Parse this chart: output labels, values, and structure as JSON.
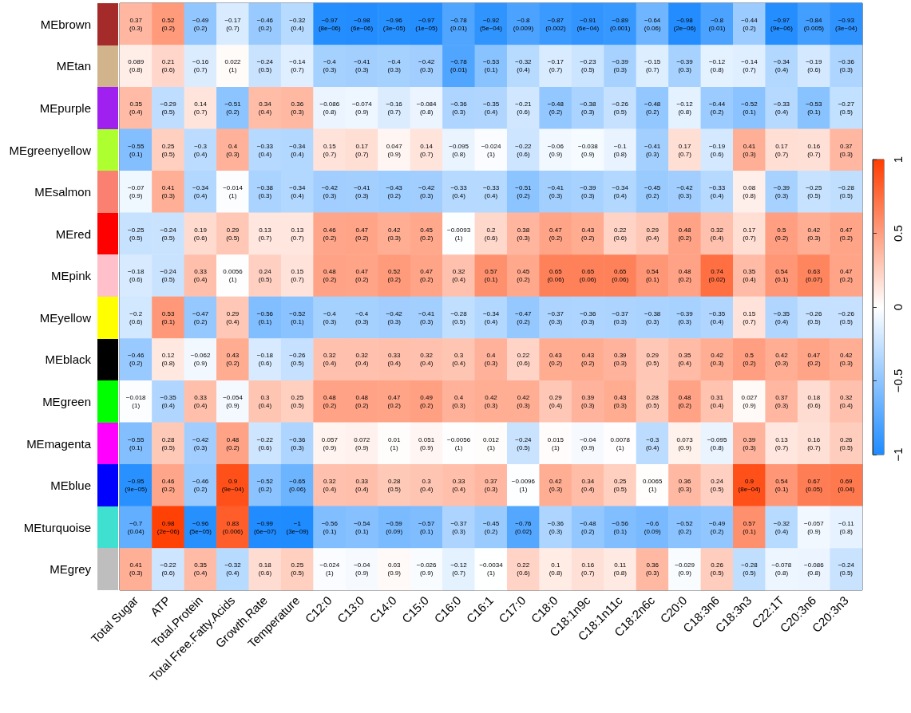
{
  "chart_data": {
    "type": "heatmap",
    "categories": [
      "Total Sugar",
      "ATP",
      "Total.Protein",
      "Total Free.Fatty.Acids",
      "Growth.Rate",
      "Temperature",
      "C12:0",
      "C13:0",
      "C14:0",
      "C15:0",
      "C16:0",
      "C16:1",
      "C17:0",
      "C18:0",
      "C18:1n9c",
      "C18:1n11c",
      "C18:2n6c",
      "C20:0",
      "C18:3n6",
      "C18:3n3",
      "C22:1T",
      "C20:3n6",
      "C20:3n3"
    ],
    "y_categories": [
      "MEbrown",
      "MEtan",
      "MEpurple",
      "MEgreenyellow",
      "MEsalmon",
      "MEred",
      "MEpink",
      "MEyellow",
      "MEblack",
      "MEgreen",
      "MEmagenta",
      "MEblue",
      "MEturquoise",
      "MEgrey"
    ],
    "cells": [
      [
        0.37,
        0.52,
        -0.49,
        -0.17,
        -0.46,
        -0.32,
        -0.97,
        -0.98,
        -0.96,
        -0.97,
        -0.78,
        -0.92,
        -0.8,
        -0.87,
        -0.91,
        -0.89,
        -0.64,
        -0.98,
        -0.8,
        -0.44,
        -0.97,
        -0.84,
        -0.93
      ],
      [
        0.089,
        0.21,
        -0.16,
        0.022,
        -0.24,
        -0.14,
        -0.4,
        -0.41,
        -0.4,
        -0.42,
        -0.78,
        -0.53,
        -0.32,
        -0.17,
        -0.23,
        -0.39,
        -0.15,
        -0.39,
        -0.12,
        -0.14,
        -0.34,
        -0.19,
        -0.36
      ],
      [
        0.35,
        -0.29,
        0.14,
        -0.51,
        0.34,
        0.36,
        -0.086,
        -0.074,
        -0.16,
        -0.084,
        -0.36,
        -0.35,
        -0.21,
        -0.48,
        -0.38,
        -0.26,
        -0.48,
        -0.12,
        -0.44,
        -0.52,
        -0.33,
        -0.53,
        -0.27
      ],
      [
        -0.55,
        0.25,
        -0.3,
        0.4,
        -0.33,
        -0.34,
        0.15,
        0.17,
        0.047,
        0.14,
        -0.095,
        -0.024,
        -0.22,
        -0.06,
        -0.038,
        -0.1,
        -0.41,
        0.17,
        -0.19,
        0.41,
        0.17,
        0.16,
        0.37
      ],
      [
        -0.07,
        0.41,
        -0.34,
        -0.014,
        -0.38,
        -0.34,
        -0.42,
        -0.41,
        -0.43,
        -0.42,
        -0.33,
        -0.33,
        -0.51,
        -0.41,
        -0.39,
        -0.34,
        -0.45,
        -0.42,
        -0.33,
        0.08,
        -0.39,
        -0.25,
        -0.28
      ],
      [
        -0.25,
        -0.24,
        0.19,
        0.29,
        0.13,
        0.13,
        0.46,
        0.47,
        0.42,
        0.45,
        -0.0093,
        0.2,
        0.38,
        0.47,
        0.43,
        0.22,
        0.29,
        0.48,
        0.32,
        0.17,
        0.5,
        0.42,
        0.47
      ],
      [
        -0.18,
        -0.24,
        0.33,
        0.0056,
        0.24,
        0.15,
        0.48,
        0.47,
        0.52,
        0.47,
        0.32,
        0.57,
        0.45,
        0.65,
        0.65,
        0.65,
        0.54,
        0.48,
        0.74,
        0.35,
        0.54,
        0.63,
        0.47
      ],
      [
        -0.2,
        0.53,
        -0.47,
        0.29,
        -0.56,
        -0.52,
        -0.4,
        -0.4,
        -0.42,
        -0.41,
        -0.28,
        -0.34,
        -0.47,
        -0.37,
        -0.36,
        -0.37,
        -0.38,
        -0.39,
        -0.35,
        0.15,
        -0.35,
        -0.26,
        -0.26
      ],
      [
        -0.46,
        0.12,
        -0.062,
        0.43,
        -0.18,
        -0.26,
        0.32,
        0.32,
        0.33,
        0.32,
        0.3,
        0.4,
        0.22,
        0.43,
        0.43,
        0.39,
        0.29,
        0.35,
        0.42,
        0.5,
        0.42,
        0.47,
        0.42
      ],
      [
        -0.018,
        -0.35,
        0.33,
        -0.054,
        0.3,
        0.25,
        0.48,
        0.48,
        0.47,
        0.49,
        0.4,
        0.42,
        0.42,
        0.29,
        0.39,
        0.43,
        0.28,
        0.48,
        0.31,
        0.027,
        0.37,
        0.18,
        0.32
      ],
      [
        -0.55,
        0.28,
        -0.42,
        0.48,
        -0.22,
        -0.36,
        0.057,
        0.072,
        0.01,
        0.051,
        -0.0056,
        0.012,
        -0.24,
        0.015,
        -0.04,
        0.0078,
        -0.3,
        0.073,
        -0.095,
        0.39,
        0.13,
        0.16,
        0.26
      ],
      [
        -0.95,
        0.46,
        -0.46,
        0.9,
        -0.52,
        -0.65,
        0.32,
        0.33,
        0.28,
        0.3,
        0.33,
        0.37,
        -0.0096,
        0.42,
        0.34,
        0.25,
        0.0065,
        0.36,
        0.24,
        0.9,
        0.54,
        0.67,
        0.69
      ],
      [
        -0.7,
        0.98,
        -0.96,
        0.83,
        -0.99,
        -1,
        -0.56,
        -0.54,
        -0.59,
        -0.57,
        -0.37,
        -0.45,
        -0.76,
        -0.36,
        -0.48,
        -0.56,
        -0.6,
        -0.52,
        -0.49,
        0.57,
        -0.32,
        -0.057,
        -0.11
      ],
      [
        0.41,
        -0.22,
        0.35,
        -0.32,
        0.18,
        0.25,
        -0.024,
        -0.04,
        0.03,
        -0.026,
        -0.12,
        -0.0034,
        0.22,
        0.1,
        0.16,
        0.11,
        0.36,
        -0.029,
        0.26,
        -0.28,
        -0.078,
        -0.086,
        -0.24
      ]
    ],
    "cell_labels": [
      [
        "0.37\n(0.3)",
        "0.52\n(0.2)",
        "−0.49\n(0.2)",
        "−0.17\n(0.7)",
        "−0.46\n(0.2)",
        "−0.32\n(0.4)",
        "−0.97\n(8e−06)",
        "−0.98\n(6e−06)",
        "−0.96\n(3e−05)",
        "−0.97\n(1e−05)",
        "−0.78\n(0.01)",
        "−0.92\n(5e−04)",
        "−0.8\n(0.009)",
        "−0.87\n(0.002)",
        "−0.91\n(6e−04)",
        "−0.89\n(0.001)",
        "−0.64\n(0.06)",
        "−0.98\n(2e−06)",
        "−0.8\n(0.01)",
        "−0.44\n(0.2)",
        "−0.97\n(9e−06)",
        "−0.84\n(0.005)",
        "−0.93\n(3e−04)"
      ],
      [
        "0.089\n(0.8)",
        "0.21\n(0.6)",
        "−0.16\n(0.7)",
        "0.022\n(1)",
        "−0.24\n(0.5)",
        "−0.14\n(0.7)",
        "−0.4\n(0.3)",
        "−0.41\n(0.3)",
        "−0.4\n(0.3)",
        "−0.42\n(0.3)",
        "−0.78\n(0.01)",
        "−0.53\n(0.1)",
        "−0.32\n(0.4)",
        "−0.17\n(0.7)",
        "−0.23\n(0.5)",
        "−0.39\n(0.3)",
        "−0.15\n(0.7)",
        "−0.39\n(0.3)",
        "−0.12\n(0.8)",
        "−0.14\n(0.7)",
        "−0.34\n(0.4)",
        "−0.19\n(0.6)",
        "−0.36\n(0.3)"
      ],
      [
        "0.35\n(0.4)",
        "−0.29\n(0.5)",
        "0.14\n(0.7)",
        "−0.51\n(0.2)",
        "0.34\n(0.4)",
        "0.36\n(0.3)",
        "−0.086\n(0.8)",
        "−0.074\n(0.9)",
        "−0.16\n(0.7)",
        "−0.084\n(0.8)",
        "−0.36\n(0.3)",
        "−0.35\n(0.4)",
        "−0.21\n(0.6)",
        "−0.48\n(0.2)",
        "−0.38\n(0.3)",
        "−0.26\n(0.5)",
        "−0.48\n(0.2)",
        "−0.12\n(0.8)",
        "−0.44\n(0.2)",
        "−0.52\n(0.1)",
        "−0.33\n(0.4)",
        "−0.53\n(0.1)",
        "−0.27\n(0.5)"
      ],
      [
        "−0.55\n(0.1)",
        "0.25\n(0.5)",
        "−0.3\n(0.4)",
        "0.4\n(0.3)",
        "−0.33\n(0.4)",
        "−0.34\n(0.4)",
        "0.15\n(0.7)",
        "0.17\n(0.7)",
        "0.047\n(0.9)",
        "0.14\n(0.7)",
        "−0.095\n(0.8)",
        "−0.024\n(1)",
        "−0.22\n(0.6)",
        "−0.06\n(0.9)",
        "−0.038\n(0.9)",
        "−0.1\n(0.8)",
        "−0.41\n(0.3)",
        "0.17\n(0.7)",
        "−0.19\n(0.6)",
        "0.41\n(0.3)",
        "0.17\n(0.7)",
        "0.16\n(0.7)",
        "0.37\n(0.3)"
      ],
      [
        "−0.07\n(0.9)",
        "0.41\n(0.3)",
        "−0.34\n(0.4)",
        "−0.014\n(1)",
        "−0.38\n(0.3)",
        "−0.34\n(0.4)",
        "−0.42\n(0.3)",
        "−0.41\n(0.3)",
        "−0.43\n(0.2)",
        "−0.42\n(0.3)",
        "−0.33\n(0.4)",
        "−0.33\n(0.4)",
        "−0.51\n(0.2)",
        "−0.41\n(0.3)",
        "−0.39\n(0.3)",
        "−0.34\n(0.4)",
        "−0.45\n(0.2)",
        "−0.42\n(0.3)",
        "−0.33\n(0.4)",
        "0.08\n(0.8)",
        "−0.39\n(0.3)",
        "−0.25\n(0.5)",
        "−0.28\n(0.5)"
      ],
      [
        "−0.25\n(0.5)",
        "−0.24\n(0.5)",
        "0.19\n(0.6)",
        "0.29\n(0.5)",
        "0.13\n(0.7)",
        "0.13\n(0.7)",
        "0.46\n(0.2)",
        "0.47\n(0.2)",
        "0.42\n(0.3)",
        "0.45\n(0.2)",
        "−0.0093\n(1)",
        "0.2\n(0.6)",
        "0.38\n(0.3)",
        "0.47\n(0.2)",
        "0.43\n(0.2)",
        "0.22\n(0.6)",
        "0.29\n(0.4)",
        "0.48\n(0.2)",
        "0.32\n(0.4)",
        "0.17\n(0.7)",
        "0.5\n(0.2)",
        "0.42\n(0.3)",
        "0.47\n(0.2)"
      ],
      [
        "−0.18\n(0.6)",
        "−0.24\n(0.5)",
        "0.33\n(0.4)",
        "0.0056\n(1)",
        "0.24\n(0.5)",
        "0.15\n(0.7)",
        "0.48\n(0.2)",
        "0.47\n(0.2)",
        "0.52\n(0.2)",
        "0.47\n(0.2)",
        "0.32\n(0.4)",
        "0.57\n(0.1)",
        "0.45\n(0.2)",
        "0.65\n(0.06)",
        "0.65\n(0.06)",
        "0.65\n(0.06)",
        "0.54\n(0.1)",
        "0.48\n(0.2)",
        "0.74\n(0.02)",
        "0.35\n(0.4)",
        "0.54\n(0.1)",
        "0.63\n(0.07)",
        "0.47\n(0.2)"
      ],
      [
        "−0.2\n(0.6)",
        "0.53\n(0.1)",
        "−0.47\n(0.2)",
        "0.29\n(0.4)",
        "−0.56\n(0.1)",
        "−0.52\n(0.1)",
        "−0.4\n(0.3)",
        "−0.4\n(0.3)",
        "−0.42\n(0.3)",
        "−0.41\n(0.3)",
        "−0.28\n(0.5)",
        "−0.34\n(0.4)",
        "−0.47\n(0.2)",
        "−0.37\n(0.3)",
        "−0.36\n(0.3)",
        "−0.37\n(0.3)",
        "−0.38\n(0.3)",
        "−0.39\n(0.3)",
        "−0.35\n(0.4)",
        "0.15\n(0.7)",
        "−0.35\n(0.4)",
        "−0.26\n(0.5)",
        "−0.26\n(0.5)"
      ],
      [
        "−0.46\n(0.2)",
        "0.12\n(0.8)",
        "−0.062\n(0.9)",
        "0.43\n(0.2)",
        "−0.18\n(0.6)",
        "−0.26\n(0.5)",
        "0.32\n(0.4)",
        "0.32\n(0.4)",
        "0.33\n(0.4)",
        "0.32\n(0.4)",
        "0.3\n(0.4)",
        "0.4\n(0.3)",
        "0.22\n(0.6)",
        "0.43\n(0.2)",
        "0.43\n(0.2)",
        "0.39\n(0.3)",
        "0.29\n(0.5)",
        "0.35\n(0.4)",
        "0.42\n(0.3)",
        "0.5\n(0.2)",
        "0.42\n(0.3)",
        "0.47\n(0.2)",
        "0.42\n(0.3)"
      ],
      [
        "−0.018\n(1)",
        "−0.35\n(0.4)",
        "0.33\n(0.4)",
        "−0.054\n(0.9)",
        "0.3\n(0.4)",
        "0.25\n(0.5)",
        "0.48\n(0.2)",
        "0.48\n(0.2)",
        "0.47\n(0.2)",
        "0.49\n(0.2)",
        "0.4\n(0.3)",
        "0.42\n(0.3)",
        "0.42\n(0.3)",
        "0.29\n(0.4)",
        "0.39\n(0.3)",
        "0.43\n(0.3)",
        "0.28\n(0.5)",
        "0.48\n(0.2)",
        "0.31\n(0.4)",
        "0.027\n(0.9)",
        "0.37\n(0.3)",
        "0.18\n(0.6)",
        "0.32\n(0.4)"
      ],
      [
        "−0.55\n(0.1)",
        "0.28\n(0.5)",
        "−0.42\n(0.3)",
        "0.48\n(0.2)",
        "−0.22\n(0.6)",
        "−0.36\n(0.3)",
        "0.057\n(0.9)",
        "0.072\n(0.9)",
        "0.01\n(1)",
        "0.051\n(0.9)",
        "−0.0056\n(1)",
        "0.012\n(1)",
        "−0.24\n(0.5)",
        "0.015\n(1)",
        "−0.04\n(0.9)",
        "0.0078\n(1)",
        "−0.3\n(0.4)",
        "0.073\n(0.9)",
        "−0.095\n(0.8)",
        "0.39\n(0.3)",
        "0.13\n(0.7)",
        "0.16\n(0.7)",
        "0.26\n(0.5)"
      ],
      [
        "−0.95\n(9e−05)",
        "0.46\n(0.2)",
        "−0.46\n(0.2)",
        "0.9\n(9e−04)",
        "−0.52\n(0.2)",
        "−0.65\n(0.06)",
        "0.32\n(0.4)",
        "0.33\n(0.4)",
        "0.28\n(0.5)",
        "0.3\n(0.4)",
        "0.33\n(0.4)",
        "0.37\n(0.3)",
        "−0.0096\n(1)",
        "0.42\n(0.3)",
        "0.34\n(0.4)",
        "0.25\n(0.5)",
        "0.0065\n(1)",
        "0.36\n(0.3)",
        "0.24\n(0.5)",
        "0.9\n(8e−04)",
        "0.54\n(0.1)",
        "0.67\n(0.05)",
        "0.69\n(0.04)"
      ],
      [
        "−0.7\n(0.04)",
        "0.98\n(2e−06)",
        "−0.96\n(5e−05)",
        "0.83\n(0.006)",
        "−0.99\n(6e−07)",
        "−1\n(3e−09)",
        "−0.56\n(0.1)",
        "−0.54\n(0.1)",
        "−0.59\n(0.09)",
        "−0.57\n(0.1)",
        "−0.37\n(0.3)",
        "−0.45\n(0.2)",
        "−0.76\n(0.02)",
        "−0.36\n(0.3)",
        "−0.48\n(0.2)",
        "−0.56\n(0.1)",
        "−0.6\n(0.09)",
        "−0.52\n(0.2)",
        "−0.49\n(0.2)",
        "0.57\n(0.1)",
        "−0.32\n(0.4)",
        "−0.057\n(0.9)",
        "−0.11\n(0.8)"
      ],
      [
        "0.41\n(0.3)",
        "−0.22\n(0.6)",
        "0.35\n(0.4)",
        "−0.32\n(0.4)",
        "0.18\n(0.6)",
        "0.25\n(0.5)",
        "−0.024\n(1)",
        "−0.04\n(0.9)",
        "0.03\n(0.9)",
        "−0.026\n(0.9)",
        "−0.12\n(0.7)",
        "−0.0034\n(1)",
        "0.22\n(0.6)",
        "0.1\n(0.8)",
        "0.16\n(0.7)",
        "0.11\n(0.8)",
        "0.36\n(0.3)",
        "−0.029\n(0.9)",
        "0.26\n(0.5)",
        "−0.28\n(0.5)",
        "−0.078\n(0.8)",
        "−0.086\n(0.8)",
        "−0.24\n(0.5)"
      ]
    ],
    "clim": [
      -1,
      1
    ],
    "cticks": [
      -1,
      -0.5,
      0,
      0.5,
      1
    ]
  }
}
